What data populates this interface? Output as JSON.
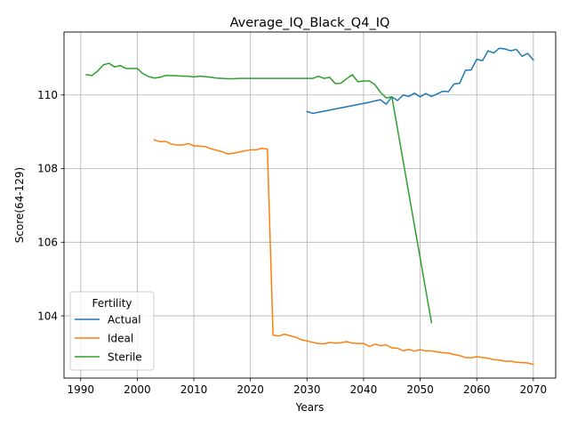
{
  "chart_data": {
    "type": "line",
    "title": "Average_IQ_Black_Q4_IQ",
    "xlabel": "Years",
    "ylabel": "Score(64-129)",
    "xlim": [
      1987.05,
      2073.95
    ],
    "ylim": [
      102.31,
      111.71
    ],
    "xticks": [
      1990,
      2000,
      2010,
      2020,
      2030,
      2040,
      2050,
      2060,
      2070
    ],
    "yticks": [
      104,
      106,
      108,
      110
    ],
    "grid": true,
    "legend": {
      "title": "Fertility",
      "placement": "lower-left",
      "entries": [
        "Actual",
        "Ideal",
        "Sterile"
      ]
    },
    "series": [
      {
        "name": "Actual",
        "color": "#1f77b4",
        "points": [
          [
            2030,
            109.55
          ],
          [
            2031,
            109.5
          ],
          [
            2032,
            109.53
          ],
          [
            2033,
            109.56
          ],
          [
            2034,
            109.59
          ],
          [
            2035,
            109.62
          ],
          [
            2036,
            109.65
          ],
          [
            2037,
            109.68
          ],
          [
            2038,
            109.71
          ],
          [
            2039,
            109.74
          ],
          [
            2040,
            109.77
          ],
          [
            2041,
            109.8
          ],
          [
            2042,
            109.84
          ],
          [
            2043,
            109.87
          ],
          [
            2044,
            109.75
          ],
          [
            2045,
            109.95
          ],
          [
            2046,
            109.85
          ],
          [
            2047,
            110.0
          ],
          [
            2048,
            109.96
          ],
          [
            2049,
            110.05
          ],
          [
            2050,
            109.95
          ],
          [
            2051,
            110.04
          ],
          [
            2052,
            109.96
          ],
          [
            2053,
            110.03
          ],
          [
            2054,
            110.1
          ],
          [
            2055,
            110.09
          ],
          [
            2056,
            110.3
          ],
          [
            2057,
            110.32
          ],
          [
            2058,
            110.67
          ],
          [
            2059,
            110.68
          ],
          [
            2060,
            110.97
          ],
          [
            2061,
            110.93
          ],
          [
            2062,
            111.2
          ],
          [
            2063,
            111.14
          ],
          [
            2064,
            111.27
          ],
          [
            2065,
            111.25
          ],
          [
            2066,
            111.2
          ],
          [
            2067,
            111.24
          ],
          [
            2068,
            111.05
          ],
          [
            2069,
            111.13
          ],
          [
            2070,
            110.95
          ]
        ]
      },
      {
        "name": "Ideal",
        "color": "#ff7f0e",
        "points": [
          [
            2003,
            108.78
          ],
          [
            2004,
            108.73
          ],
          [
            2005,
            108.74
          ],
          [
            2006,
            108.67
          ],
          [
            2007,
            108.64
          ],
          [
            2008,
            108.64
          ],
          [
            2009,
            108.68
          ],
          [
            2010,
            108.62
          ],
          [
            2011,
            108.61
          ],
          [
            2012,
            108.6
          ],
          [
            2013,
            108.54
          ],
          [
            2014,
            108.5
          ],
          [
            2015,
            108.46
          ],
          [
            2016,
            108.4
          ],
          [
            2017,
            108.42
          ],
          [
            2018,
            108.45
          ],
          [
            2019,
            108.48
          ],
          [
            2020,
            108.51
          ],
          [
            2021,
            108.51
          ],
          [
            2022,
            108.55
          ],
          [
            2023,
            108.53
          ],
          [
            2024,
            103.48
          ],
          [
            2025,
            103.45
          ],
          [
            2026,
            103.5
          ],
          [
            2027,
            103.46
          ],
          [
            2028,
            103.42
          ],
          [
            2029,
            103.35
          ],
          [
            2030,
            103.32
          ],
          [
            2031,
            103.28
          ],
          [
            2032,
            103.25
          ],
          [
            2033,
            103.24
          ],
          [
            2034,
            103.28
          ],
          [
            2035,
            103.26
          ],
          [
            2036,
            103.27
          ],
          [
            2037,
            103.3
          ],
          [
            2038,
            103.26
          ],
          [
            2039,
            103.25
          ],
          [
            2040,
            103.25
          ],
          [
            2041,
            103.17
          ],
          [
            2042,
            103.23
          ],
          [
            2043,
            103.19
          ],
          [
            2044,
            103.21
          ],
          [
            2045,
            103.13
          ],
          [
            2046,
            103.12
          ],
          [
            2047,
            103.05
          ],
          [
            2048,
            103.09
          ],
          [
            2049,
            103.04
          ],
          [
            2050,
            103.08
          ],
          [
            2051,
            103.05
          ],
          [
            2052,
            103.05
          ],
          [
            2053,
            103.02
          ],
          [
            2054,
            103.0
          ],
          [
            2055,
            102.99
          ],
          [
            2056,
            102.95
          ],
          [
            2057,
            102.92
          ],
          [
            2058,
            102.87
          ],
          [
            2059,
            102.86
          ],
          [
            2060,
            102.89
          ],
          [
            2061,
            102.87
          ],
          [
            2062,
            102.85
          ],
          [
            2063,
            102.81
          ],
          [
            2064,
            102.8
          ],
          [
            2065,
            102.77
          ],
          [
            2066,
            102.77
          ],
          [
            2067,
            102.74
          ],
          [
            2068,
            102.73
          ],
          [
            2069,
            102.72
          ],
          [
            2070,
            102.68
          ]
        ]
      },
      {
        "name": "Sterile",
        "color": "#2ca02c",
        "points": [
          [
            1991,
            110.55
          ],
          [
            1992,
            110.53
          ],
          [
            1993,
            110.65
          ],
          [
            1994,
            110.82
          ],
          [
            1995,
            110.86
          ],
          [
            1996,
            110.76
          ],
          [
            1997,
            110.8
          ],
          [
            1998,
            110.72
          ],
          [
            1999,
            110.72
          ],
          [
            2000,
            110.72
          ],
          [
            2001,
            110.58
          ],
          [
            2002,
            110.5
          ],
          [
            2003,
            110.46
          ],
          [
            2004,
            110.48
          ],
          [
            2005,
            110.53
          ],
          [
            2006,
            110.53
          ],
          [
            2007,
            110.52
          ],
          [
            2008,
            110.51
          ],
          [
            2009,
            110.51
          ],
          [
            2010,
            110.49
          ],
          [
            2011,
            110.51
          ],
          [
            2012,
            110.5
          ],
          [
            2013,
            110.48
          ],
          [
            2014,
            110.46
          ],
          [
            2015,
            110.45
          ],
          [
            2016,
            110.44
          ],
          [
            2017,
            110.44
          ],
          [
            2018,
            110.45
          ],
          [
            2019,
            110.45
          ],
          [
            2020,
            110.45
          ],
          [
            2021,
            110.45
          ],
          [
            2022,
            110.45
          ],
          [
            2023,
            110.45
          ],
          [
            2024,
            110.45
          ],
          [
            2025,
            110.45
          ],
          [
            2026,
            110.45
          ],
          [
            2027,
            110.45
          ],
          [
            2028,
            110.45
          ],
          [
            2029,
            110.45
          ],
          [
            2030,
            110.45
          ],
          [
            2031,
            110.45
          ],
          [
            2032,
            110.51
          ],
          [
            2033,
            110.45
          ],
          [
            2034,
            110.48
          ],
          [
            2035,
            110.31
          ],
          [
            2036,
            110.32
          ],
          [
            2037,
            110.44
          ],
          [
            2038,
            110.55
          ],
          [
            2039,
            110.36
          ],
          [
            2040,
            110.38
          ],
          [
            2041,
            110.38
          ],
          [
            2042,
            110.28
          ],
          [
            2043,
            110.07
          ],
          [
            2044,
            109.92
          ],
          [
            2045,
            109.95
          ],
          [
            2052,
            103.82
          ]
        ]
      }
    ]
  }
}
